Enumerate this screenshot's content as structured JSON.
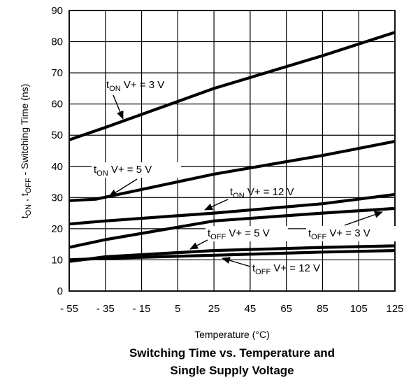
{
  "chart_data": {
    "type": "line",
    "title_lines": [
      "Switching Time vs. Temperature and",
      "Single Supply Voltage"
    ],
    "xlabel": "Temperature (°C)",
    "ylabel": {
      "pre": "t",
      "sub1": "ON",
      "mid": " , t",
      "sub2": "OFF",
      "post": " - Switching Time (ns)"
    },
    "xlim": [
      -55,
      125
    ],
    "ylim": [
      0,
      90
    ],
    "x_ticks": [
      -55,
      -35,
      -15,
      5,
      25,
      45,
      65,
      85,
      105,
      125
    ],
    "x_tick_labels": [
      "- 55",
      "- 35",
      "- 15",
      "5",
      "25",
      "45",
      "65",
      "85",
      "105",
      "125"
    ],
    "y_ticks": [
      0,
      10,
      20,
      30,
      40,
      50,
      60,
      70,
      80,
      90
    ],
    "y_tick_labels": [
      "0",
      "10",
      "20",
      "30",
      "40",
      "50",
      "60",
      "70",
      "80",
      "90"
    ],
    "grid": true,
    "series": [
      {
        "name": "tON V+ = 3 V",
        "x": [
          -55,
          -35,
          25,
          85,
          125
        ],
        "y": [
          48.5,
          52.5,
          65,
          75.5,
          83
        ]
      },
      {
        "name": "tON V+ = 5 V",
        "x": [
          -55,
          -40,
          25,
          85,
          125
        ],
        "y": [
          29,
          29.5,
          37.5,
          43.5,
          48
        ]
      },
      {
        "name": "tON V+ = 12 V",
        "x": [
          -55,
          -35,
          25,
          85,
          125
        ],
        "y": [
          21.5,
          22.5,
          25,
          28,
          31
        ]
      },
      {
        "name": "tOFF V+ = 5 V",
        "x": [
          -55,
          -35,
          25,
          85,
          125
        ],
        "y": [
          14,
          16.5,
          22.5,
          25,
          26.5
        ]
      },
      {
        "name": "tOFF V+ = 3 V",
        "x": [
          -55,
          -35,
          25,
          85,
          125
        ],
        "y": [
          9.5,
          11,
          13,
          14,
          14.5
        ]
      },
      {
        "name": "tOFF V+ = 12 V",
        "x": [
          -55,
          -35,
          25,
          85,
          125
        ],
        "y": [
          10,
          10.5,
          11.5,
          12.5,
          13
        ]
      }
    ],
    "annotations": [
      {
        "pre": "t",
        "sub": "ON",
        "post": " V+ = 3 V"
      },
      {
        "pre": "t",
        "sub": "ON",
        "post": " V+ = 5 V"
      },
      {
        "pre": "t",
        "sub": "ON",
        "post": " V+ = 12 V"
      },
      {
        "pre": "t",
        "sub": "OFF",
        "post": " V+ = 5 V"
      },
      {
        "pre": "t",
        "sub": "OFF",
        "post": " V+ = 3 V"
      },
      {
        "pre": "t",
        "sub": "OFF",
        "post": " V+ = 12 V"
      }
    ],
    "colors": {
      "line": "#000000",
      "grid": "#000000",
      "background": "#ffffff"
    }
  }
}
